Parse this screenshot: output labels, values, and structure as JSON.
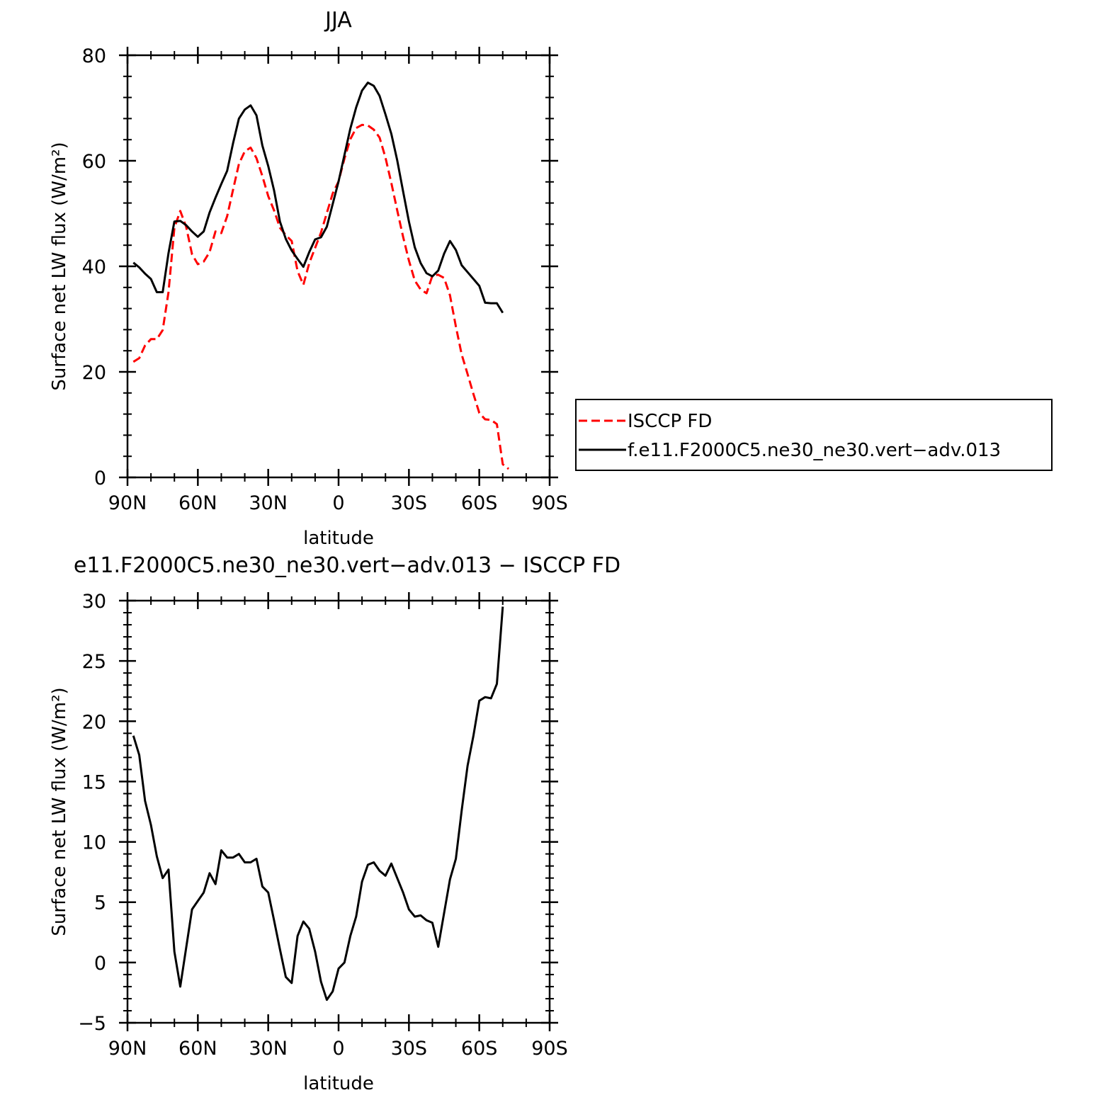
{
  "chart_data": [
    {
      "type": "line",
      "title": "JJA",
      "xlabel": "latitude",
      "ylabel": "Surface net LW flux (W/m²)",
      "xlim": [
        90,
        -90
      ],
      "ylim": [
        0,
        80
      ],
      "xticks": [
        {
          "value": 90,
          "label": "90N"
        },
        {
          "value": 60,
          "label": "60N"
        },
        {
          "value": 30,
          "label": "30N"
        },
        {
          "value": 0,
          "label": "0"
        },
        {
          "value": -30,
          "label": "30S"
        },
        {
          "value": -60,
          "label": "60S"
        },
        {
          "value": -90,
          "label": "90S"
        }
      ],
      "yticks": [
        {
          "value": 0,
          "label": "0"
        },
        {
          "value": 20,
          "label": "20"
        },
        {
          "value": 40,
          "label": "40"
        },
        {
          "value": 60,
          "label": "60"
        },
        {
          "value": 80,
          "label": "80"
        }
      ],
      "legend": "right",
      "series": [
        {
          "name": "ISCCP FD",
          "color": "#ff0000",
          "dash": true,
          "points": [
            [
              87.5,
              21.9
            ],
            [
              85,
              22.6
            ],
            [
              82.5,
              25.0
            ],
            [
              80,
              26.2
            ],
            [
              77.5,
              26.2
            ],
            [
              75,
              27.9
            ],
            [
              72.5,
              35.1
            ],
            [
              70,
              47.3
            ],
            [
              67.5,
              50.5
            ],
            [
              65,
              47.5
            ],
            [
              62.5,
              42.3
            ],
            [
              60,
              40.4
            ],
            [
              57.5,
              40.9
            ],
            [
              55,
              42.7
            ],
            [
              52.5,
              46.6
            ],
            [
              50,
              46.3
            ],
            [
              47.5,
              49.5
            ],
            [
              45,
              54.5
            ],
            [
              42.5,
              59.4
            ],
            [
              40,
              61.8
            ],
            [
              37.5,
              62.5
            ],
            [
              35,
              60.5
            ],
            [
              32.5,
              57.1
            ],
            [
              30,
              53.3
            ],
            [
              27.5,
              50.6
            ],
            [
              25,
              47.3
            ],
            [
              22.5,
              45.9
            ],
            [
              20,
              44.8
            ],
            [
              17.5,
              39.1
            ],
            [
              15,
              36.5
            ],
            [
              12.5,
              40.6
            ],
            [
              10,
              43.5
            ],
            [
              7.5,
              46.4
            ],
            [
              5,
              50.1
            ],
            [
              2.5,
              53.8
            ],
            [
              0,
              56.1
            ],
            [
              -2.5,
              60.4
            ],
            [
              -5,
              64.1
            ],
            [
              -7.5,
              66.2
            ],
            [
              -10,
              66.8
            ],
            [
              -12.5,
              66.7
            ],
            [
              -15,
              65.9
            ],
            [
              -17.5,
              64.4
            ],
            [
              -20,
              60.6
            ],
            [
              -22.5,
              55.8
            ],
            [
              -25,
              50.6
            ],
            [
              -27.5,
              45.6
            ],
            [
              -30,
              41.1
            ],
            [
              -32.5,
              37.3
            ],
            [
              -35,
              35.6
            ],
            [
              -37.5,
              34.9
            ],
            [
              -40,
              38.2
            ],
            [
              -42.5,
              38.4
            ],
            [
              -45,
              37.8
            ],
            [
              -47.5,
              34.5
            ],
            [
              -50,
              28.6
            ],
            [
              -52.5,
              23.3
            ],
            [
              -55,
              19.6
            ],
            [
              -57.5,
              15.8
            ],
            [
              -60,
              12.2
            ],
            [
              -62.5,
              11.0
            ],
            [
              -65,
              10.9
            ],
            [
              -67.5,
              10.1
            ],
            [
              -70,
              2.5
            ],
            [
              -72.5,
              1.6
            ]
          ]
        },
        {
          "name": "f.e11.F2000C5.ne30_ne30.vert−adv.013",
          "color": "#000000",
          "dash": false,
          "points": [
            [
              87.5,
              40.7
            ],
            [
              85,
              39.8
            ],
            [
              82.5,
              38.6
            ],
            [
              80,
              37.6
            ],
            [
              77.5,
              35.1
            ],
            [
              75,
              35.1
            ],
            [
              72.5,
              42.5
            ],
            [
              70,
              48.5
            ],
            [
              67.5,
              48.6
            ],
            [
              65,
              47.8
            ],
            [
              62.5,
              46.6
            ],
            [
              60,
              45.6
            ],
            [
              57.5,
              46.6
            ],
            [
              55,
              50.2
            ],
            [
              52.5,
              53.0
            ],
            [
              50,
              55.6
            ],
            [
              47.5,
              58.1
            ],
            [
              45,
              63.3
            ],
            [
              42.5,
              68.0
            ],
            [
              40,
              69.7
            ],
            [
              37.5,
              70.5
            ],
            [
              35,
              68.6
            ],
            [
              32.5,
              62.9
            ],
            [
              30,
              59.0
            ],
            [
              27.5,
              54.4
            ],
            [
              25,
              48.5
            ],
            [
              22.5,
              45.2
            ],
            [
              20,
              43.0
            ],
            [
              17.5,
              41.4
            ],
            [
              15,
              39.9
            ],
            [
              12.5,
              42.7
            ],
            [
              10,
              45.1
            ],
            [
              7.5,
              45.5
            ],
            [
              5,
              47.5
            ],
            [
              2.5,
              51.8
            ],
            [
              0,
              56.1
            ],
            [
              -2.5,
              61.1
            ],
            [
              -5,
              66.1
            ],
            [
              -7.5,
              70.1
            ],
            [
              -10,
              73.3
            ],
            [
              -12.5,
              74.8
            ],
            [
              -15,
              74.2
            ],
            [
              -17.5,
              72.3
            ],
            [
              -20,
              68.8
            ],
            [
              -22.5,
              65.1
            ],
            [
              -25,
              60.1
            ],
            [
              -27.5,
              54.2
            ],
            [
              -30,
              48.5
            ],
            [
              -32.5,
              43.6
            ],
            [
              -35,
              40.6
            ],
            [
              -37.5,
              38.7
            ],
            [
              -40,
              38.1
            ],
            [
              -42.5,
              39.2
            ],
            [
              -45,
              42.4
            ],
            [
              -47.5,
              44.8
            ],
            [
              -50,
              43.1
            ],
            [
              -52.5,
              40.2
            ],
            [
              -55,
              38.9
            ],
            [
              -57.5,
              37.6
            ],
            [
              -60,
              36.3
            ],
            [
              -62.5,
              33.1
            ],
            [
              -65,
              33.0
            ],
            [
              -67.5,
              33.0
            ],
            [
              -70,
              31.2
            ]
          ]
        }
      ]
    },
    {
      "type": "line",
      "title": "e11.F2000C5.ne30_ne30.vert−adv.013 − ISCCP FD",
      "xlabel": "latitude",
      "ylabel": "Surface net LW flux (W/m²)",
      "xlim": [
        90,
        -90
      ],
      "ylim": [
        -5,
        30
      ],
      "xticks": [
        {
          "value": 90,
          "label": "90N"
        },
        {
          "value": 60,
          "label": "60N"
        },
        {
          "value": 30,
          "label": "30N"
        },
        {
          "value": 0,
          "label": "0"
        },
        {
          "value": -30,
          "label": "30S"
        },
        {
          "value": -60,
          "label": "60S"
        },
        {
          "value": -90,
          "label": "90S"
        }
      ],
      "yticks": [
        {
          "value": -5,
          "label": "−5"
        },
        {
          "value": 0,
          "label": "0"
        },
        {
          "value": 5,
          "label": "5"
        },
        {
          "value": 10,
          "label": "10"
        },
        {
          "value": 15,
          "label": "15"
        },
        {
          "value": 20,
          "label": "20"
        },
        {
          "value": 25,
          "label": "25"
        },
        {
          "value": 30,
          "label": "30"
        }
      ],
      "series": [
        {
          "color": "#000000",
          "dash": false,
          "points": [
            [
              87.5,
              18.8
            ],
            [
              85,
              17.2
            ],
            [
              82.5,
              13.4
            ],
            [
              80,
              11.4
            ],
            [
              77.5,
              8.8
            ],
            [
              75,
              7.0
            ],
            [
              72.5,
              7.7
            ],
            [
              70,
              0.9
            ],
            [
              67.5,
              -2.0
            ],
            [
              65,
              1.2
            ],
            [
              62.5,
              4.4
            ],
            [
              60,
              5.1
            ],
            [
              57.5,
              5.8
            ],
            [
              55,
              7.4
            ],
            [
              52.5,
              6.5
            ],
            [
              50,
              9.3
            ],
            [
              47.5,
              8.7
            ],
            [
              45,
              8.7
            ],
            [
              42.5,
              9.0
            ],
            [
              40,
              8.3
            ],
            [
              37.5,
              8.3
            ],
            [
              35,
              8.6
            ],
            [
              32.5,
              6.3
            ],
            [
              30,
              5.8
            ],
            [
              27.5,
              3.5
            ],
            [
              25,
              1.1
            ],
            [
              22.5,
              -1.2
            ],
            [
              20,
              -1.7
            ],
            [
              17.5,
              2.2
            ],
            [
              15,
              3.4
            ],
            [
              12.5,
              2.8
            ],
            [
              10,
              0.9
            ],
            [
              7.5,
              -1.6
            ],
            [
              5,
              -3.1
            ],
            [
              2.5,
              -2.4
            ],
            [
              0,
              -0.5
            ],
            [
              -2.5,
              0.0
            ],
            [
              -5,
              2.2
            ],
            [
              -7.5,
              3.8
            ],
            [
              -10,
              6.7
            ],
            [
              -12.5,
              8.1
            ],
            [
              -15,
              8.3
            ],
            [
              -17.5,
              7.6
            ],
            [
              -20,
              7.2
            ],
            [
              -22.5,
              8.2
            ],
            [
              -25,
              7.0
            ],
            [
              -27.5,
              5.8
            ],
            [
              -30,
              4.4
            ],
            [
              -32.5,
              3.8
            ],
            [
              -35,
              3.9
            ],
            [
              -37.5,
              3.5
            ],
            [
              -40,
              3.3
            ],
            [
              -42.5,
              1.3
            ],
            [
              -45,
              4.1
            ],
            [
              -47.5,
              6.9
            ],
            [
              -50,
              8.6
            ],
            [
              -52.5,
              12.6
            ],
            [
              -55,
              16.3
            ],
            [
              -57.5,
              18.8
            ],
            [
              -60,
              21.7
            ],
            [
              -62.5,
              22.0
            ],
            [
              -65,
              21.9
            ],
            [
              -67.5,
              23.1
            ],
            [
              -70,
              29.5
            ]
          ]
        }
      ]
    }
  ]
}
